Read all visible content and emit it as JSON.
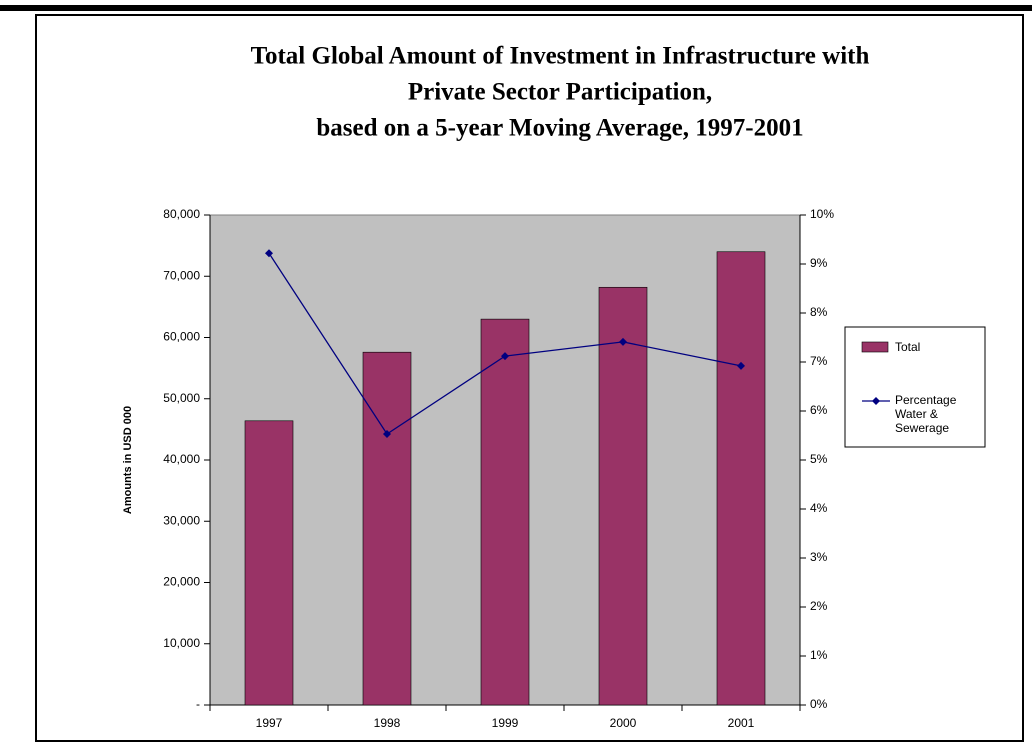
{
  "chart_data": {
    "type": "combo",
    "title": [
      "Total Global Amount of Investment in Infrastructure with",
      "Private Sector Participation,",
      "based on a 5-year Moving Average, 1997-2001"
    ],
    "y_label": "Amounts in USD 000",
    "categories": [
      "1997",
      "1998",
      "1999",
      "2000",
      "2001"
    ],
    "series": [
      {
        "name": "Total",
        "type": "bar",
        "color": "#993366",
        "values": [
          46400,
          57600,
          63000,
          68200,
          74000
        ]
      },
      {
        "name": "Percentage Water & Sewerage",
        "type": "line",
        "axis": "y2",
        "color": "#000080",
        "values": [
          9.22,
          5.53,
          7.12,
          7.41,
          6.92
        ]
      }
    ],
    "ylim": [
      0,
      80000
    ],
    "yticks": [
      {
        "value": 0,
        "label": "-"
      },
      {
        "value": 10000,
        "label": "10,000"
      },
      {
        "value": 20000,
        "label": "20,000"
      },
      {
        "value": 30000,
        "label": "30,000"
      },
      {
        "value": 40000,
        "label": "40,000"
      },
      {
        "value": 50000,
        "label": "50,000"
      },
      {
        "value": 60000,
        "label": "60,000"
      },
      {
        "value": 70000,
        "label": "70,000"
      },
      {
        "value": 80000,
        "label": "80,000"
      }
    ],
    "y2lim": [
      0,
      10
    ],
    "y2ticks": [
      {
        "value": 0,
        "label": "0%"
      },
      {
        "value": 1,
        "label": "1%"
      },
      {
        "value": 2,
        "label": "2%"
      },
      {
        "value": 3,
        "label": "3%"
      },
      {
        "value": 4,
        "label": "4%"
      },
      {
        "value": 5,
        "label": "5%"
      },
      {
        "value": 6,
        "label": "6%"
      },
      {
        "value": 7,
        "label": "7%"
      },
      {
        "value": 8,
        "label": "8%"
      },
      {
        "value": 9,
        "label": "9%"
      },
      {
        "value": 10,
        "label": "10%"
      }
    ],
    "plot_background": "#c0c0c0",
    "legend": "right"
  }
}
